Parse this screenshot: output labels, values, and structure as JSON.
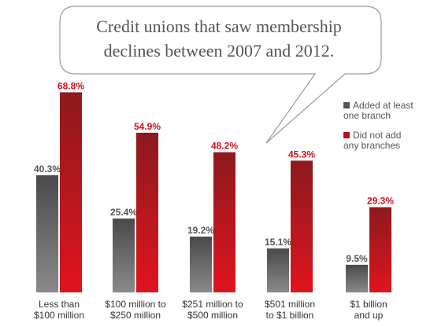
{
  "chart_data": {
    "type": "bar",
    "title_lines": [
      "Credit unions that saw membership",
      "declines between 2007 and 2012."
    ],
    "categories": [
      [
        "Less than",
        "$100 million"
      ],
      [
        "$100 million to",
        "$250 million"
      ],
      [
        "$251 million to",
        "$500 million"
      ],
      [
        "$501 million",
        "to $1 billion"
      ],
      [
        "$1 billion",
        "and up"
      ]
    ],
    "series": [
      {
        "name_lines": [
          "Added at least",
          "one branch"
        ],
        "values": [
          40.3,
          25.4,
          19.2,
          15.1,
          9.5
        ],
        "labels": [
          "40.3%",
          "25.4%",
          "19.2%",
          "15.1%",
          "9.5%"
        ],
        "color": "#555555",
        "label_color": "#555555"
      },
      {
        "name_lines": [
          "Did not add",
          "any branches"
        ],
        "values": [
          68.8,
          54.9,
          48.2,
          45.3,
          29.3
        ],
        "labels": [
          "68.8%",
          "54.9%",
          "48.2%",
          "45.3%",
          "29.3%"
        ],
        "color": "#b5121b",
        "label_color": "#d0101b"
      }
    ],
    "ylim": [
      0,
      100
    ],
    "grid": false,
    "legend_position": "right"
  }
}
